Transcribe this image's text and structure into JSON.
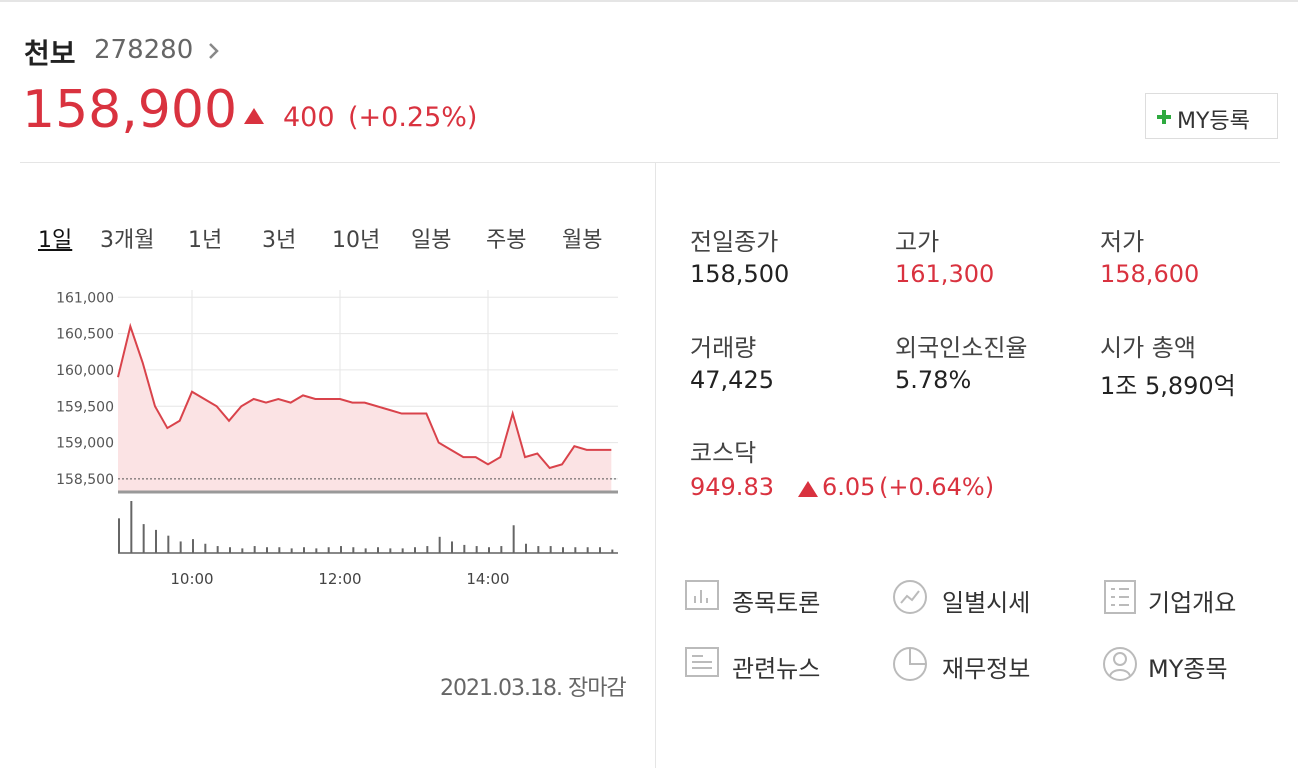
{
  "header": {
    "name": "천보",
    "code": "278280",
    "price": "158,900",
    "change": "400",
    "change_rate": "(+0.25%)",
    "my_button": "MY등록"
  },
  "tabs": [
    "1일",
    "3개월",
    "1년",
    "3년",
    "10년",
    "일봉",
    "주봉",
    "월봉"
  ],
  "chart_data": {
    "type": "line",
    "color": "#d9434b",
    "x": [
      "09:00",
      "09:10",
      "09:20",
      "09:30",
      "09:40",
      "09:50",
      "10:00",
      "10:10",
      "10:20",
      "10:30",
      "10:40",
      "10:50",
      "11:00",
      "11:10",
      "11:20",
      "11:30",
      "11:40",
      "11:50",
      "12:00",
      "12:10",
      "12:20",
      "12:30",
      "12:40",
      "12:50",
      "13:00",
      "13:10",
      "13:20",
      "13:30",
      "13:40",
      "13:50",
      "14:00",
      "14:10",
      "14:20",
      "14:30",
      "14:40",
      "14:50",
      "15:00",
      "15:10",
      "15:20",
      "15:30",
      "15:40"
    ],
    "values": [
      159900,
      160600,
      160100,
      159500,
      159200,
      159300,
      159700,
      159600,
      159500,
      159300,
      159500,
      159600,
      159550,
      159600,
      159550,
      159650,
      159600,
      159600,
      159600,
      159550,
      159550,
      159500,
      159450,
      159400,
      159400,
      159400,
      159000,
      158900,
      158800,
      158800,
      158700,
      158800,
      159400,
      158800,
      158850,
      158650,
      158700,
      158950,
      158900,
      158900,
      158900
    ],
    "volume": [
      30,
      45,
      25,
      20,
      15,
      10,
      12,
      8,
      6,
      5,
      4,
      6,
      5,
      5,
      4,
      5,
      4,
      5,
      6,
      5,
      4,
      5,
      4,
      4,
      5,
      6,
      14,
      10,
      7,
      6,
      5,
      6,
      24,
      8,
      6,
      6,
      5,
      5,
      5,
      5,
      3
    ],
    "ylim": [
      158320,
      161100
    ],
    "yticks": [
      {
        "value": 158500,
        "label": "158,500"
      },
      {
        "value": 159000,
        "label": "159,000"
      },
      {
        "value": 159500,
        "label": "159,500"
      },
      {
        "value": 160000,
        "label": "160,000"
      },
      {
        "value": 160500,
        "label": "160,500"
      },
      {
        "value": 161000,
        "label": "161,000"
      }
    ],
    "xticks": [
      "10:00",
      "12:00",
      "14:00"
    ],
    "reference_line": 158500,
    "grid": true
  },
  "footer": "2021.03.18. 장마감",
  "stats": [
    {
      "label": "전일종가",
      "value": "158,500"
    },
    {
      "label": "고가",
      "value": "161,300"
    },
    {
      "label": "저가",
      "value": "158,600"
    },
    {
      "label": "거래량",
      "value": "47,425"
    },
    {
      "label": "외국인소진율",
      "value": "5.78%"
    },
    {
      "label": "시가 총액",
      "value": "1조 5,890억"
    }
  ],
  "kosdaq": {
    "label": "코스닥",
    "value": "949.83",
    "change": "6.05",
    "change_rate": "(+0.64%)"
  },
  "links": [
    "종목토론",
    "일별시세",
    "기업개요",
    "관련뉴스",
    "재무정보",
    "MY종목"
  ]
}
